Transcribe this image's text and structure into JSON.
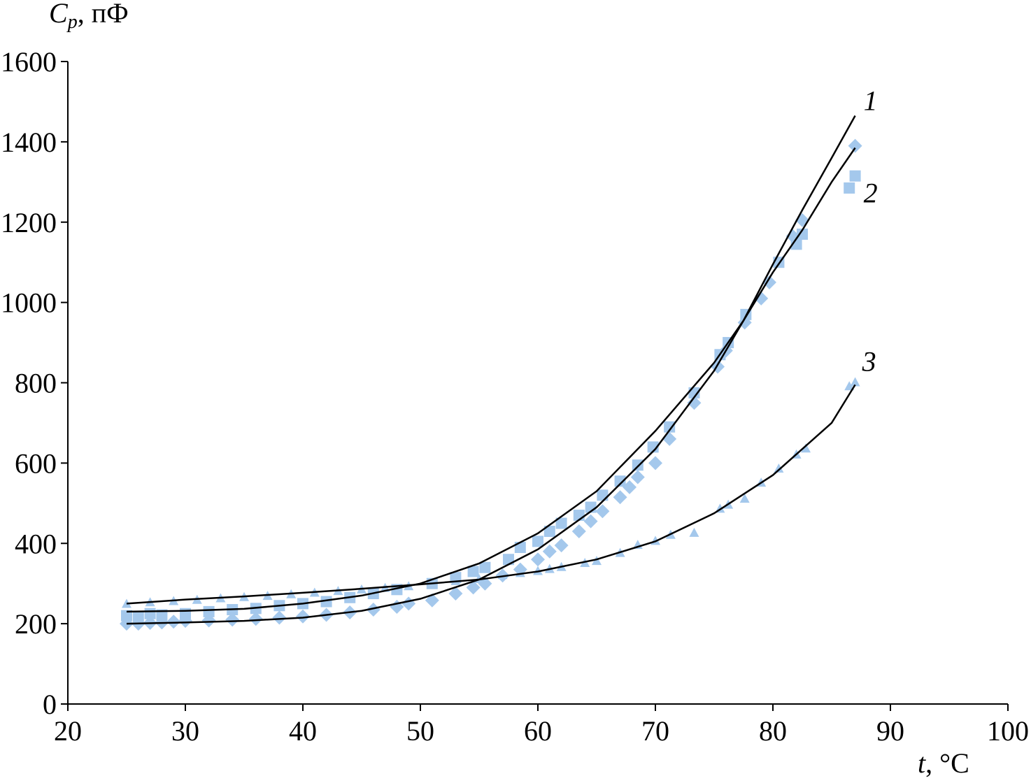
{
  "chart_data": {
    "type": "scatter",
    "ylabel_symbol": "C",
    "ylabel_subscript": "p",
    "ylabel_unit": ", пФ",
    "xlabel_symbol": "t",
    "xlabel_unit": ", °C",
    "xlim": [
      20,
      100
    ],
    "xticks": [
      20,
      30,
      40,
      50,
      60,
      70,
      80,
      90,
      100
    ],
    "ylim": [
      0,
      1600
    ],
    "yticks": [
      0,
      200,
      400,
      600,
      800,
      1000,
      1200,
      1400,
      1600
    ],
    "series": [
      {
        "marker": "square",
        "color": "#a4c8ec",
        "x": [
          25,
          26,
          27,
          28,
          30,
          32,
          34,
          36,
          38,
          40,
          42,
          44,
          46,
          48,
          51,
          53,
          54.5,
          55.5,
          57.5,
          58.5,
          60,
          61,
          62,
          63.5,
          64.5,
          65.5,
          67,
          68.5,
          69.8,
          71.2,
          73.3,
          75.5,
          76.2,
          77.7,
          80.5,
          82,
          82.5,
          86.5,
          87
        ],
        "values": [
          220,
          218,
          225,
          222,
          225,
          230,
          235,
          238,
          245,
          250,
          255,
          265,
          275,
          285,
          300,
          315,
          330,
          340,
          360,
          390,
          405,
          430,
          450,
          470,
          490,
          520,
          555,
          595,
          640,
          690,
          775,
          870,
          900,
          970,
          1100,
          1145,
          1170,
          1285,
          1315
        ]
      },
      {
        "marker": "diamond",
        "color": "#a4c8ec",
        "x": [
          25,
          26,
          27,
          28,
          29,
          30,
          32,
          34,
          36,
          38,
          40,
          42,
          44,
          46,
          48,
          49,
          51,
          53,
          54.5,
          55.5,
          57,
          58.5,
          60,
          61,
          62,
          63.5,
          64.5,
          65.5,
          67,
          67.8,
          68.5,
          70,
          71.2,
          73.3,
          75.3,
          76,
          77.6,
          79,
          79.7,
          81.7,
          82.5,
          87
        ],
        "values": [
          200,
          200,
          202,
          203,
          205,
          207,
          208,
          210,
          212,
          215,
          218,
          222,
          228,
          235,
          242,
          250,
          258,
          275,
          290,
          300,
          320,
          335,
          360,
          380,
          395,
          430,
          455,
          480,
          515,
          540,
          565,
          600,
          660,
          750,
          840,
          880,
          950,
          1010,
          1050,
          1165,
          1205,
          1390
        ]
      },
      {
        "marker": "triangle",
        "color": "#a4c8ec",
        "x": [
          25,
          27,
          29,
          31,
          33,
          35,
          37,
          39,
          41,
          43,
          45,
          47,
          49,
          51,
          53,
          55,
          57,
          58.5,
          60,
          61,
          62,
          64,
          65,
          67,
          68.5,
          70,
          71.3,
          73.3,
          75.5,
          76.2,
          77.6,
          79,
          80.5,
          82,
          82.8,
          86.5,
          87
        ],
        "values": [
          248,
          252,
          255,
          258,
          262,
          265,
          268,
          272,
          276,
          280,
          284,
          288,
          292,
          298,
          305,
          310,
          320,
          325,
          330,
          335,
          340,
          350,
          355,
          375,
          395,
          405,
          420,
          425,
          485,
          495,
          510,
          550,
          585,
          620,
          635,
          790,
          800
        ]
      }
    ],
    "curves": [
      {
        "name": "1",
        "color": "#000000",
        "x": [
          25,
          30,
          35,
          40,
          45,
          50,
          55,
          60,
          65,
          70,
          75,
          77.5,
          80,
          82.5,
          85,
          87
        ],
        "values": [
          230,
          232,
          237,
          250,
          270,
          300,
          350,
          425,
          530,
          680,
          850,
          955,
          1095,
          1230,
          1360,
          1465
        ]
      },
      {
        "name": "2",
        "color": "#000000",
        "x": [
          25,
          30,
          35,
          40,
          45,
          50,
          55,
          60,
          65,
          70,
          75,
          77.5,
          80,
          82.5,
          85,
          87
        ],
        "values": [
          200,
          203,
          207,
          215,
          232,
          262,
          310,
          385,
          490,
          635,
          830,
          955,
          1075,
          1180,
          1300,
          1385
        ]
      },
      {
        "name": "3",
        "color": "#000000",
        "x": [
          25,
          30,
          35,
          40,
          45,
          50,
          55,
          60,
          65,
          70,
          75,
          80,
          85,
          87
        ],
        "values": [
          250,
          260,
          268,
          277,
          287,
          298,
          310,
          330,
          360,
          405,
          475,
          570,
          700,
          795
        ]
      }
    ]
  }
}
